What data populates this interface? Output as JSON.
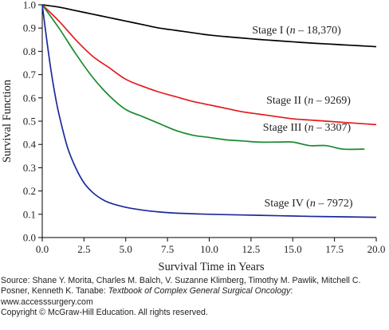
{
  "chart_data": {
    "type": "line",
    "title": "",
    "xlabel": "Survival Time in Years",
    "ylabel": "Survival Function",
    "xlim": [
      0,
      20
    ],
    "ylim": [
      0,
      1.0
    ],
    "x_ticks": [
      "0.0",
      "2.5",
      "5.0",
      "7.5",
      "10.0",
      "12.5",
      "15.0",
      "17.5",
      "20.0"
    ],
    "y_ticks": [
      "0.0",
      "0.1",
      "0.2",
      "0.3",
      "0.4",
      "0.5",
      "0.6",
      "0.7",
      "0.8",
      "0.9",
      "1.0"
    ],
    "grid": false,
    "series": [
      {
        "name": "Stage I",
        "n_label": "n – 18,370",
        "color": "#000000",
        "x": [
          0,
          1,
          2,
          3,
          4,
          5,
          6,
          7,
          8,
          9,
          10,
          11,
          12,
          13,
          14,
          15,
          16,
          17,
          18,
          19,
          20
        ],
        "y": [
          1.0,
          0.99,
          0.975,
          0.96,
          0.945,
          0.93,
          0.915,
          0.9,
          0.89,
          0.88,
          0.87,
          0.863,
          0.857,
          0.851,
          0.846,
          0.841,
          0.836,
          0.832,
          0.828,
          0.824,
          0.82
        ]
      },
      {
        "name": "Stage II",
        "n_label": "n – 9269",
        "color": "#e31a1c",
        "x": [
          0,
          1,
          2,
          3,
          4,
          5,
          6,
          7,
          8,
          9,
          10,
          11,
          12,
          13,
          14,
          15,
          16,
          17,
          18,
          19,
          20
        ],
        "y": [
          1.0,
          0.93,
          0.85,
          0.78,
          0.73,
          0.68,
          0.65,
          0.625,
          0.605,
          0.585,
          0.57,
          0.555,
          0.54,
          0.53,
          0.52,
          0.51,
          0.505,
          0.5,
          0.495,
          0.49,
          0.485
        ]
      },
      {
        "name": "Stage III",
        "n_label": "n – 3307",
        "color": "#1a8a2e",
        "x": [
          0,
          1,
          2,
          3,
          4,
          5,
          6,
          7,
          8,
          9,
          10,
          11,
          12,
          13,
          14,
          15,
          16,
          17,
          18,
          19.3
        ],
        "y": [
          1.0,
          0.9,
          0.79,
          0.69,
          0.61,
          0.55,
          0.52,
          0.49,
          0.46,
          0.44,
          0.43,
          0.42,
          0.415,
          0.41,
          0.41,
          0.41,
          0.395,
          0.395,
          0.38,
          0.38
        ]
      },
      {
        "name": "Stage IV",
        "n_label": "n – 7972",
        "color": "#1c2a9a",
        "x": [
          0,
          0.25,
          0.5,
          0.75,
          1,
          1.5,
          2,
          2.5,
          3,
          3.5,
          4,
          5,
          6,
          7,
          8,
          10,
          12,
          14,
          16,
          18,
          20
        ],
        "y": [
          1.0,
          0.86,
          0.73,
          0.62,
          0.53,
          0.39,
          0.3,
          0.235,
          0.195,
          0.168,
          0.15,
          0.13,
          0.118,
          0.11,
          0.105,
          0.1,
          0.097,
          0.094,
          0.091,
          0.089,
          0.087
        ]
      }
    ]
  },
  "source": {
    "prefix": "Source: Shane Y. Morita, Charles M. Balch, V. Suzanne Klimberg, Timothy M. Pawlik, Mitchell C. Posner, Kenneth K. Tanabe: ",
    "book": "Textbook of Complex General Surgical Oncology",
    "suffix": ":",
    "website": "www.accesssurgery.com",
    "copyright": "Copyright © McGraw-Hill Education. All rights reserved."
  }
}
